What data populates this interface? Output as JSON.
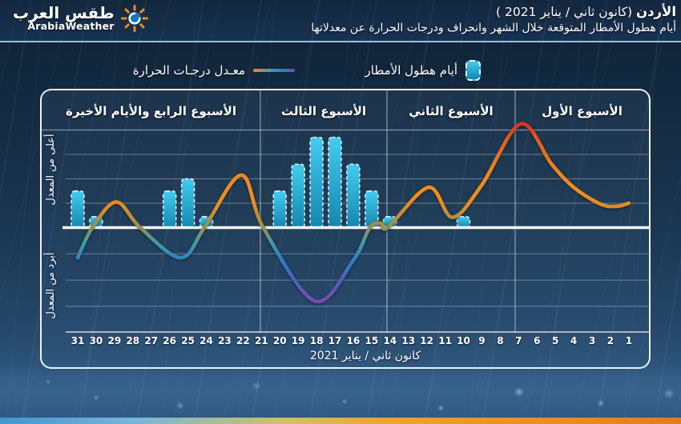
{
  "header": {
    "logo": {
      "arabic": "طقس العرب",
      "english": "ArabiaWeather"
    },
    "title_bold": "الأردن",
    "title_paren": "(كانون ثاني / يناير 2021 )",
    "subtitle": "أيام هطول الأمطار المتوقعة خلال الشهر وانحراف ودرجات الحرارة عن معدلاتها"
  },
  "legend": {
    "rain_label": "أيام هطول الأمطار",
    "temperature_label": "معـدل درجـات الحرارة"
  },
  "axis": {
    "above_label": "أعلى من المعدل",
    "below_label": "أبرد من المعدل",
    "x_title": "كانون ثاني / يناير 2021"
  },
  "chart_data": {
    "type": "combo",
    "x_days": [
      31,
      30,
      29,
      28,
      27,
      26,
      25,
      24,
      23,
      22,
      21,
      20,
      19,
      18,
      17,
      16,
      15,
      14,
      13,
      12,
      11,
      10,
      9,
      8,
      7,
      6,
      5,
      4,
      3,
      2,
      1
    ],
    "weeks": [
      {
        "label": "الأسبوع الأول",
        "from_day": 1,
        "to_day": 7
      },
      {
        "label": "الأسبوع الثاني",
        "from_day": 8,
        "to_day": 14
      },
      {
        "label": "الأسبوع الثالث",
        "from_day": 15,
        "to_day": 21
      },
      {
        "label": "الأسبوع الرابع والأيام الأخيرة",
        "from_day": 22,
        "to_day": 31
      }
    ],
    "y_axis": {
      "zero_line": "baseline (المعدل)",
      "above_label": "أعلى من المعدل",
      "below_label": "أبرد من المعدل",
      "gridlines_above": 4,
      "gridlines_below": 3,
      "value_range": [
        -3,
        4.5
      ]
    },
    "series": [
      {
        "name": "أيام هطول الأمطار",
        "type": "bar",
        "points": [
          {
            "day": 31,
            "value": 1.5
          },
          {
            "day": 30,
            "value": 0.45
          },
          {
            "day": 26,
            "value": 1.5
          },
          {
            "day": 25,
            "value": 2.0
          },
          {
            "day": 24,
            "value": 0.45
          },
          {
            "day": 20,
            "value": 1.5
          },
          {
            "day": 19,
            "value": 2.6
          },
          {
            "day": 18,
            "value": 3.7
          },
          {
            "day": 17,
            "value": 3.7
          },
          {
            "day": 16,
            "value": 2.6
          },
          {
            "day": 15,
            "value": 1.5
          },
          {
            "day": 14,
            "value": 0.45
          },
          {
            "day": 10,
            "value": 0.45
          }
        ]
      },
      {
        "name": "معدل درجات الحرارة",
        "type": "line",
        "points": [
          [
            31,
            -1.15
          ],
          [
            30.2,
            0
          ],
          [
            28.9,
            1.05
          ],
          [
            27.6,
            0
          ],
          [
            25.4,
            -1.15
          ],
          [
            24.1,
            0
          ],
          [
            22.1,
            2.15
          ],
          [
            20.9,
            0
          ],
          [
            18.1,
            -2.8
          ],
          [
            16,
            -1.25
          ],
          [
            15.1,
            0
          ],
          [
            14.5,
            0.18
          ],
          [
            14.1,
            0.02
          ],
          [
            11.9,
            1.65
          ],
          [
            10.6,
            0.42
          ],
          [
            9,
            1.75
          ],
          [
            6.9,
            4.25
          ],
          [
            5.2,
            2.6
          ],
          [
            4,
            1.65
          ],
          [
            2.5,
            0.95
          ],
          [
            1.6,
            0.88
          ],
          [
            1,
            1.0
          ]
        ]
      }
    ]
  },
  "colors": {
    "bar_top": "#41cdf0",
    "bar_bottom": "#1486ae",
    "curve_gradient": [
      {
        "offset": 0.0,
        "color": "#d8281e"
      },
      {
        "offset": 0.1,
        "color": "#e45a1c"
      },
      {
        "offset": 0.3,
        "color": "#f08a1e"
      },
      {
        "offset": 0.45,
        "color": "#ef8c1e"
      },
      {
        "offset": 0.6,
        "color": "#8f9050"
      },
      {
        "offset": 0.68,
        "color": "#3f9aa8"
      },
      {
        "offset": 0.78,
        "color": "#2f7fc2"
      },
      {
        "offset": 0.88,
        "color": "#4a63b8"
      },
      {
        "offset": 1.0,
        "color": "#7a4bae"
      }
    ],
    "brand_bar": [
      "#3e96d1",
      "#79b6da",
      "#cfc25e",
      "#f0a226",
      "#ea7a16"
    ]
  }
}
